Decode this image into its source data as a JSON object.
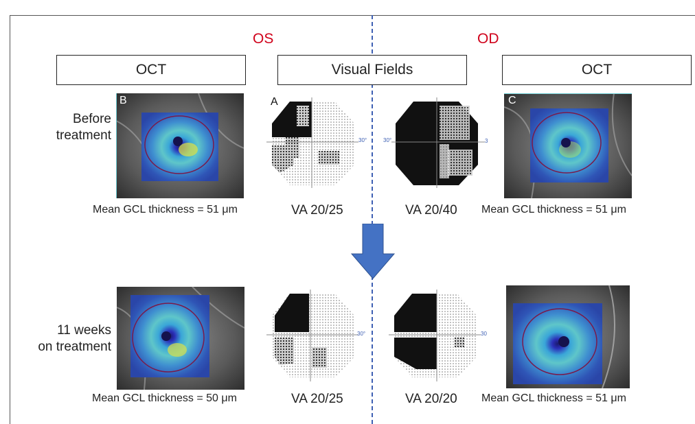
{
  "eyes": {
    "left": "OS",
    "right": "OD"
  },
  "headers": {
    "oct_left": "OCT",
    "visual_fields": "Visual Fields",
    "oct_right": "OCT"
  },
  "rows": {
    "before": {
      "label_line1": "Before",
      "label_line2": "treatment"
    },
    "after": {
      "label_line1": "11 weeks",
      "label_line2": "on treatment"
    }
  },
  "panel_letters": {
    "oct_os": "B",
    "vf": "A",
    "oct_od": "C"
  },
  "captions": {
    "before_os_gcl": "Mean GCL thickness = 51 μm",
    "before_os_va": "VA 20/25",
    "before_od_va": "VA 20/40",
    "before_od_gcl": "Mean GCL thickness = 51 μm",
    "after_os_gcl": "Mean GCL thickness = 50 μm",
    "after_os_va": "VA 20/25",
    "after_od_va": "VA 20/20",
    "after_od_gcl": "Mean GCL thickness = 51 μm"
  },
  "vf_axis_labels": {
    "deg_right": "30°",
    "deg_left": "30°",
    "edge_num": "3",
    "edge_num2": "30"
  },
  "colors": {
    "eye_label": "#d0021b",
    "divider": "#3d5fb3",
    "arrow": "#4472c4"
  }
}
